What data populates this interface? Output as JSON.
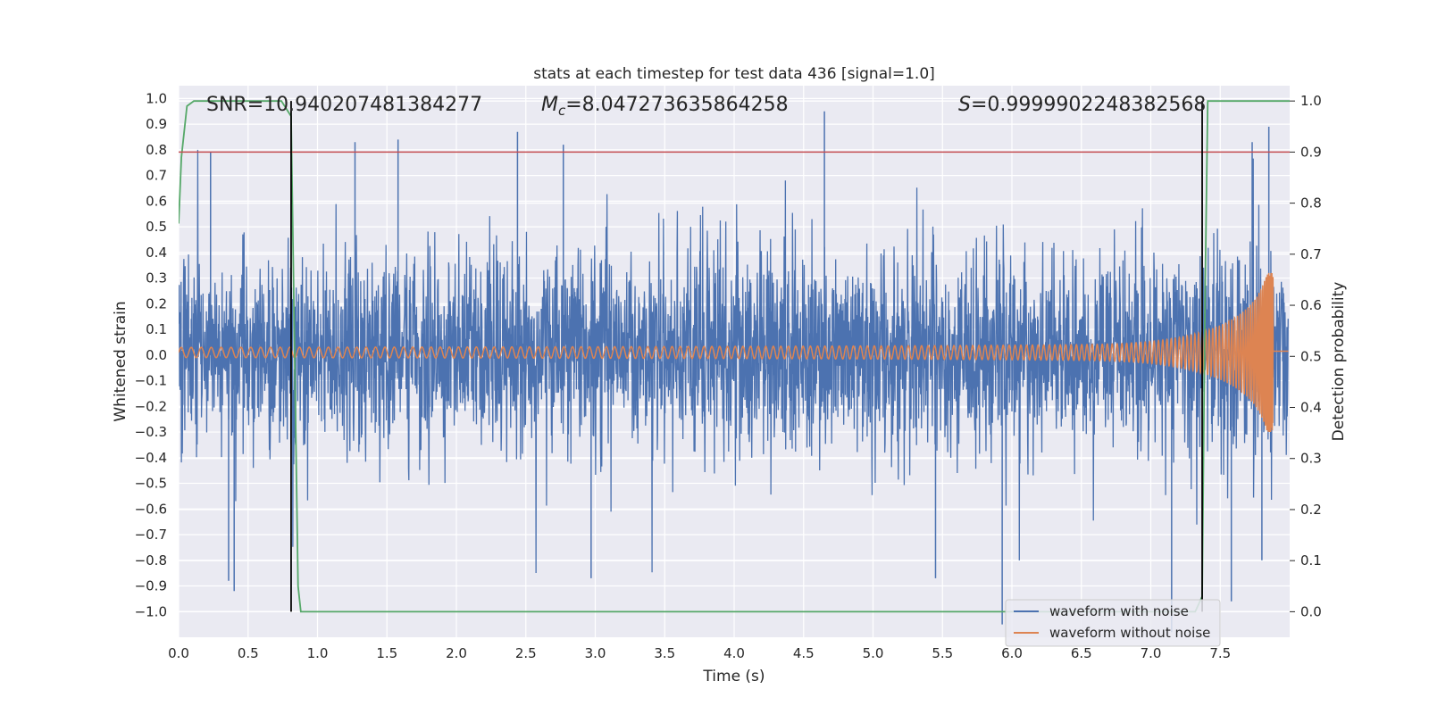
{
  "chart_data": {
    "type": "line",
    "title": "stats at each timestep for test data 436 [signal=1.0]",
    "xlabel": "Time (s)",
    "ylabel_left": "Whitened strain",
    "ylabel_right": "Detection probability",
    "xlim": [
      0.0,
      8.0
    ],
    "ylim_left": [
      -1.1,
      1.05
    ],
    "ylim_right": [
      -0.05,
      1.03
    ],
    "x_ticks": [
      0.0,
      0.5,
      1.0,
      1.5,
      2.0,
      2.5,
      3.0,
      3.5,
      4.0,
      4.5,
      5.0,
      5.5,
      6.0,
      6.5,
      7.0,
      7.5
    ],
    "x_tick_labels": [
      "0.0",
      "0.5",
      "1.0",
      "1.5",
      "2.0",
      "2.5",
      "3.0",
      "3.5",
      "4.0",
      "4.5",
      "5.0",
      "5.5",
      "6.0",
      "6.5",
      "7.0",
      "7.5"
    ],
    "y_left_ticks": [
      -1.0,
      -0.9,
      -0.8,
      -0.7,
      -0.6,
      -0.5,
      -0.4,
      -0.3,
      -0.2,
      -0.1,
      0.0,
      0.1,
      0.2,
      0.3,
      0.4,
      0.5,
      0.6,
      0.7,
      0.8,
      0.9,
      1.0
    ],
    "y_left_tick_labels": [
      "−1.0",
      "−0.9",
      "−0.8",
      "−0.7",
      "−0.6",
      "−0.5",
      "−0.4",
      "−0.3",
      "−0.2",
      "−0.1",
      "0.0",
      "0.1",
      "0.2",
      "0.3",
      "0.4",
      "0.5",
      "0.6",
      "0.7",
      "0.8",
      "0.9",
      "1.0"
    ],
    "y_right_ticks": [
      0.0,
      0.1,
      0.2,
      0.3,
      0.4,
      0.5,
      0.6,
      0.7,
      0.8,
      0.9,
      1.0
    ],
    "y_right_tick_labels": [
      "0.0",
      "0.1",
      "0.2",
      "0.3",
      "0.4",
      "0.5",
      "0.6",
      "0.7",
      "0.8",
      "0.9",
      "1.0"
    ],
    "annotations": {
      "snr": "SNR=10.940207481384277",
      "mc_symbol": "M",
      "mc_subscript": "c",
      "mc_value": "=8.047273635864258",
      "s_symbol": "S",
      "s_value": "=0.9999902248382568"
    },
    "threshold_right": 0.9,
    "vertical_lines_x": [
      0.81,
      7.37
    ],
    "series": [
      {
        "name": "waveform with noise",
        "axis": "left",
        "color": "#4c72b0",
        "noise_std": 0.19,
        "notable_peaks": [
          {
            "x": 0.23,
            "y": 0.79
          },
          {
            "x": 1.27,
            "y": 0.83
          },
          {
            "x": 1.58,
            "y": 0.84
          },
          {
            "x": 2.44,
            "y": 0.87
          },
          {
            "x": 2.77,
            "y": 0.82
          },
          {
            "x": 4.65,
            "y": 0.95
          },
          {
            "x": 7.73,
            "y": 0.83
          },
          {
            "x": 7.85,
            "y": 0.89
          },
          {
            "x": 0.4,
            "y": -0.92
          },
          {
            "x": 0.36,
            "y": -0.88
          },
          {
            "x": 2.97,
            "y": -0.87
          },
          {
            "x": 5.45,
            "y": -0.87
          },
          {
            "x": 5.93,
            "y": -1.05
          },
          {
            "x": 7.15,
            "y": -1.08
          },
          {
            "x": 7.58,
            "y": -0.96
          },
          {
            "x": 7.8,
            "y": -0.8
          }
        ]
      },
      {
        "name": "waveform without noise",
        "axis": "left",
        "color": "#dd8452",
        "chirp": {
          "t_merger": 7.88,
          "start_amplitude": 0.02,
          "peak_amplitude": 0.31,
          "start_frequency_hz": 13.5
        }
      },
      {
        "name": "detection probability",
        "axis": "right",
        "color": "#55a868",
        "x": [
          0.0,
          0.02,
          0.06,
          0.11,
          0.74,
          0.81,
          0.86,
          0.88,
          7.32,
          7.37,
          7.39,
          7.41,
          8.0
        ],
        "y": [
          0.76,
          0.89,
          0.99,
          1.0,
          1.0,
          0.97,
          0.05,
          0.0,
          0.0,
          0.03,
          0.6,
          1.0,
          1.0
        ]
      }
    ],
    "legend": {
      "position": "lower-right",
      "entries": [
        {
          "label": "waveform with noise",
          "color": "#4c72b0"
        },
        {
          "label": "waveform without noise",
          "color": "#dd8452"
        }
      ]
    },
    "style": {
      "plot_background": "#eaeaf2",
      "grid_color": "#ffffff",
      "threshold_color": "#c44e52",
      "vline_color": "#000000"
    }
  }
}
